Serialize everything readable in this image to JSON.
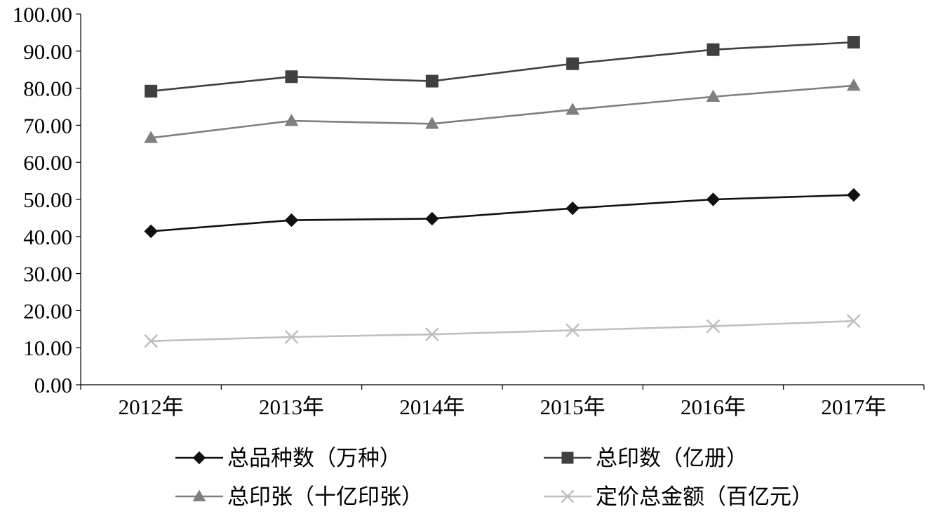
{
  "chart_data": {
    "type": "line",
    "title": "",
    "xlabel": "",
    "ylabel": "",
    "categories": [
      "2012年",
      "2013年",
      "2014年",
      "2015年",
      "2016年",
      "2017年"
    ],
    "ylim": [
      0,
      100
    ],
    "y_ticks": [
      "0.00",
      "10.00",
      "20.00",
      "30.00",
      "40.00",
      "50.00",
      "60.00",
      "70.00",
      "80.00",
      "90.00",
      "100.00"
    ],
    "grid": false,
    "legend_position": "bottom",
    "series": [
      {
        "name": "总品种数（万种）",
        "values": [
          41.4,
          44.4,
          44.8,
          47.6,
          50.0,
          51.2
        ],
        "color": "#111111",
        "marker": "diamond"
      },
      {
        "name": "总印数（亿册）",
        "values": [
          79.2,
          83.1,
          81.9,
          86.6,
          90.4,
          92.4
        ],
        "color": "#404040",
        "marker": "square"
      },
      {
        "name": "总印张（十亿印张）",
        "values": [
          66.6,
          71.2,
          70.4,
          74.2,
          77.7,
          80.7
        ],
        "color": "#7f7f7f",
        "marker": "triangle"
      },
      {
        "name": "定价总金额（百亿元）",
        "values": [
          11.8,
          12.9,
          13.6,
          14.7,
          15.8,
          17.2
        ],
        "color": "#bfbfbf",
        "marker": "x"
      }
    ]
  }
}
